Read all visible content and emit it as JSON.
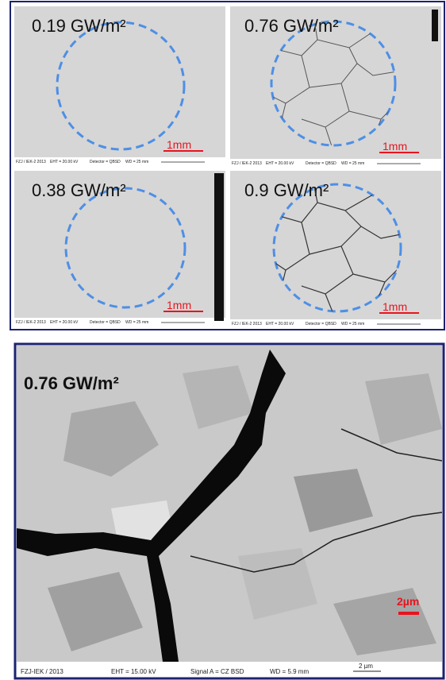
{
  "panels": [
    {
      "label": "0.19 GW/m²",
      "scale": "1mm",
      "footer": [
        "FZJ / IEK-2 2013",
        "EHT = 20.00 kV",
        "Detector = QBSD",
        "WD = 25 mm"
      ]
    },
    {
      "label": "0.76 GW/m²",
      "scale": "1mm",
      "footer": [
        "FZJ / IEK-2 2013",
        "EHT = 20.00 kV",
        "Detector = QBSD",
        "WD = 25 mm"
      ]
    },
    {
      "label": "0.38 GW/m²",
      "scale": "1mm",
      "footer": [
        "FZJ / IEK-2 2013",
        "EHT = 20.00 kV",
        "Detector = QBSD",
        "WD = 25 mm"
      ]
    },
    {
      "label": "0.9 GW/m²",
      "scale": "1mm",
      "footer": [
        "FZJ / IEK-2 2013",
        "EHT = 20.00 kV",
        "Detector = QBSD",
        "WD = 25 mm"
      ]
    }
  ],
  "detail": {
    "label": "0.76 GW/m²",
    "scale": "2µm",
    "footer": [
      "FZJ-IEK / 2013",
      "EHT = 15.00 kV",
      "Signal A = CZ BSD",
      "WD = 5.9 mm"
    ],
    "footer_scale": "2 µm"
  }
}
